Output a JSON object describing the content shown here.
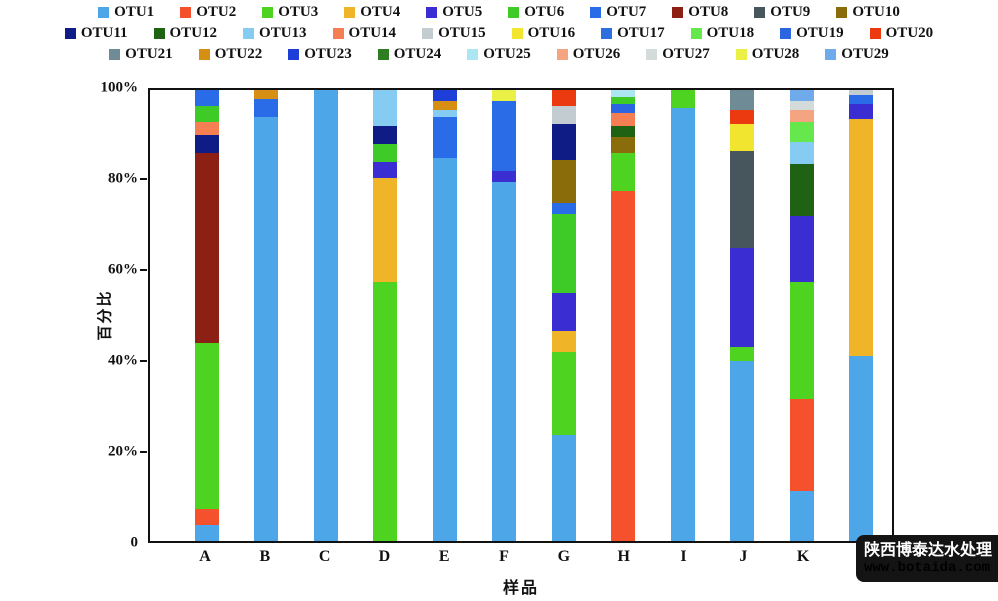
{
  "watermark": {
    "line1": "陕西博泰达水处理",
    "line2": "www.botaida.com",
    "bg": "#141414",
    "line1_color": "#ffffff",
    "line2_color": "#2bc8dc"
  },
  "chart_data": {
    "type": "bar",
    "stacked": true,
    "title": "",
    "xlabel": "样品",
    "ylabel": "百分比",
    "ylim": [
      0,
      100
    ],
    "grid": false,
    "legend_position": "top",
    "y_ticks": [
      {
        "label": "100%",
        "value": 100
      },
      {
        "label": "80%",
        "value": 80
      },
      {
        "label": "60%",
        "value": 60
      },
      {
        "label": "40%",
        "value": 40
      },
      {
        "label": "20%",
        "value": 20
      },
      {
        "label": "0",
        "value": 0
      }
    ],
    "otu_colors": {
      "OTU1": "#4da6e8",
      "OTU2": "#f4512c",
      "OTU3": "#4fd321",
      "OTU4": "#f0b429",
      "OTU5": "#3a2ed2",
      "OTU6": "#3ecb28",
      "OTU7": "#2a6be8",
      "OTU8": "#8d2014",
      "OTU9": "#47555c",
      "OTU10": "#8a6d0a",
      "OTU11": "#101c85",
      "OTU12": "#206213",
      "OTU13": "#85cbf2",
      "OTU14": "#f57e52",
      "OTU15": "#c3cdd1",
      "OTU16": "#f2e530",
      "OTU17": "#2e6fe0",
      "OTU18": "#66e84d",
      "OTU19": "#2b66e0",
      "OTU20": "#ec3a10",
      "OTU21": "#6f8c96",
      "OTU22": "#d68f12",
      "OTU23": "#1e3ed8",
      "OTU24": "#2f7d22",
      "OTU25": "#abe6f2",
      "OTU26": "#f5a482",
      "OTU27": "#d4dbdb",
      "OTU28": "#eaf046",
      "OTU29": "#6fabeb"
    },
    "legend_rows": [
      [
        "OTU1",
        "OTU2",
        "OTU3",
        "OTU4",
        "OTU5",
        "OTU6",
        "OTU7",
        "OTU8",
        "OTU9",
        "OTU10"
      ],
      [
        "OTU11",
        "OTU12",
        "OTU13",
        "OTU14",
        "OTU15",
        "OTU16",
        "OTU17",
        "OTU18",
        "OTU19",
        "OTU20"
      ],
      [
        "OTU21",
        "OTU22",
        "OTU23",
        "OTU24",
        "OTU25",
        "OTU26",
        "OTU27",
        "OTU28",
        "OTU29"
      ]
    ],
    "categories": [
      "A",
      "B",
      "C",
      "D",
      "E",
      "F",
      "G",
      "H",
      "I",
      "J",
      "K",
      ""
    ],
    "samples": [
      {
        "label": "A",
        "segments": [
          {
            "otu": "OTU1",
            "value": 3.5
          },
          {
            "otu": "OTU2",
            "value": 3.5
          },
          {
            "otu": "OTU3",
            "value": 37
          },
          {
            "otu": "OTU8",
            "value": 42
          },
          {
            "otu": "OTU11",
            "value": 4
          },
          {
            "otu": "OTU14",
            "value": 3
          },
          {
            "otu": "OTU6",
            "value": 3.5
          },
          {
            "otu": "OTU7",
            "value": 3.5
          }
        ]
      },
      {
        "label": "B",
        "segments": [
          {
            "otu": "OTU1",
            "value": 94
          },
          {
            "otu": "OTU7",
            "value": 4
          },
          {
            "otu": "OTU22",
            "value": 2
          }
        ]
      },
      {
        "label": "C",
        "segments": [
          {
            "otu": "OTU1",
            "value": 100
          }
        ]
      },
      {
        "label": "D",
        "segments": [
          {
            "otu": "OTU3",
            "value": 57.5
          },
          {
            "otu": "OTU4",
            "value": 23
          },
          {
            "otu": "OTU5",
            "value": 3.5
          },
          {
            "otu": "OTU6",
            "value": 4
          },
          {
            "otu": "OTU11",
            "value": 4
          },
          {
            "otu": "OTU13",
            "value": 8
          }
        ]
      },
      {
        "label": "E",
        "segments": [
          {
            "otu": "OTU1",
            "value": 85
          },
          {
            "otu": "OTU7",
            "value": 9
          },
          {
            "otu": "OTU13",
            "value": 1.5
          },
          {
            "otu": "OTU22",
            "value": 2
          },
          {
            "otu": "OTU23",
            "value": 2.5
          }
        ]
      },
      {
        "label": "F",
        "segments": [
          {
            "otu": "OTU1",
            "value": 79.5
          },
          {
            "otu": "OTU5",
            "value": 2.5
          },
          {
            "otu": "OTU7",
            "value": 15.5
          },
          {
            "otu": "OTU28",
            "value": 2.5
          }
        ]
      },
      {
        "label": "G",
        "segments": [
          {
            "otu": "OTU1",
            "value": 23.5
          },
          {
            "otu": "OTU3",
            "value": 18.5
          },
          {
            "otu": "OTU4",
            "value": 4.5
          },
          {
            "otu": "OTU5",
            "value": 8.5
          },
          {
            "otu": "OTU6",
            "value": 17.5
          },
          {
            "otu": "OTU7",
            "value": 2.5
          },
          {
            "otu": "OTU10",
            "value": 9.5
          },
          {
            "otu": "OTU11",
            "value": 8
          },
          {
            "otu": "OTU15",
            "value": 4
          },
          {
            "otu": "OTU20",
            "value": 3.5
          }
        ]
      },
      {
        "label": "H",
        "segments": [
          {
            "otu": "OTU2",
            "value": 77.5
          },
          {
            "otu": "OTU3",
            "value": 8.5
          },
          {
            "otu": "OTU10",
            "value": 3.5
          },
          {
            "otu": "OTU12",
            "value": 2.5
          },
          {
            "otu": "OTU14",
            "value": 3
          },
          {
            "otu": "OTU19",
            "value": 2
          },
          {
            "otu": "OTU6",
            "value": 1.5
          },
          {
            "otu": "OTU25",
            "value": 1.5
          }
        ]
      },
      {
        "label": "I",
        "segments": [
          {
            "otu": "OTU1",
            "value": 96
          },
          {
            "otu": "OTU3",
            "value": 4
          }
        ]
      },
      {
        "label": "J",
        "segments": [
          {
            "otu": "OTU1",
            "value": 40
          },
          {
            "otu": "OTU3",
            "value": 3
          },
          {
            "otu": "OTU5",
            "value": 22
          },
          {
            "otu": "OTU9",
            "value": 21.5
          },
          {
            "otu": "OTU16",
            "value": 6
          },
          {
            "otu": "OTU20",
            "value": 3
          },
          {
            "otu": "OTU21",
            "value": 4.5
          }
        ]
      },
      {
        "label": "K",
        "segments": [
          {
            "otu": "OTU1",
            "value": 11
          },
          {
            "otu": "OTU2",
            "value": 20.5
          },
          {
            "otu": "OTU3",
            "value": 26
          },
          {
            "otu": "OTU5",
            "value": 14.5
          },
          {
            "otu": "OTU12",
            "value": 11.5
          },
          {
            "otu": "OTU13",
            "value": 5
          },
          {
            "otu": "OTU18",
            "value": 4.5
          },
          {
            "otu": "OTU26",
            "value": 2.5
          },
          {
            "otu": "OTU27",
            "value": 2
          },
          {
            "otu": "OTU29",
            "value": 2.5
          }
        ]
      },
      {
        "label": "",
        "segments": [
          {
            "otu": "OTU1",
            "value": 41
          },
          {
            "otu": "OTU4",
            "value": 52.5
          },
          {
            "otu": "OTU5",
            "value": 3.5
          },
          {
            "otu": "OTU7",
            "value": 2
          },
          {
            "otu": "OTU15",
            "value": 1
          }
        ]
      }
    ]
  }
}
